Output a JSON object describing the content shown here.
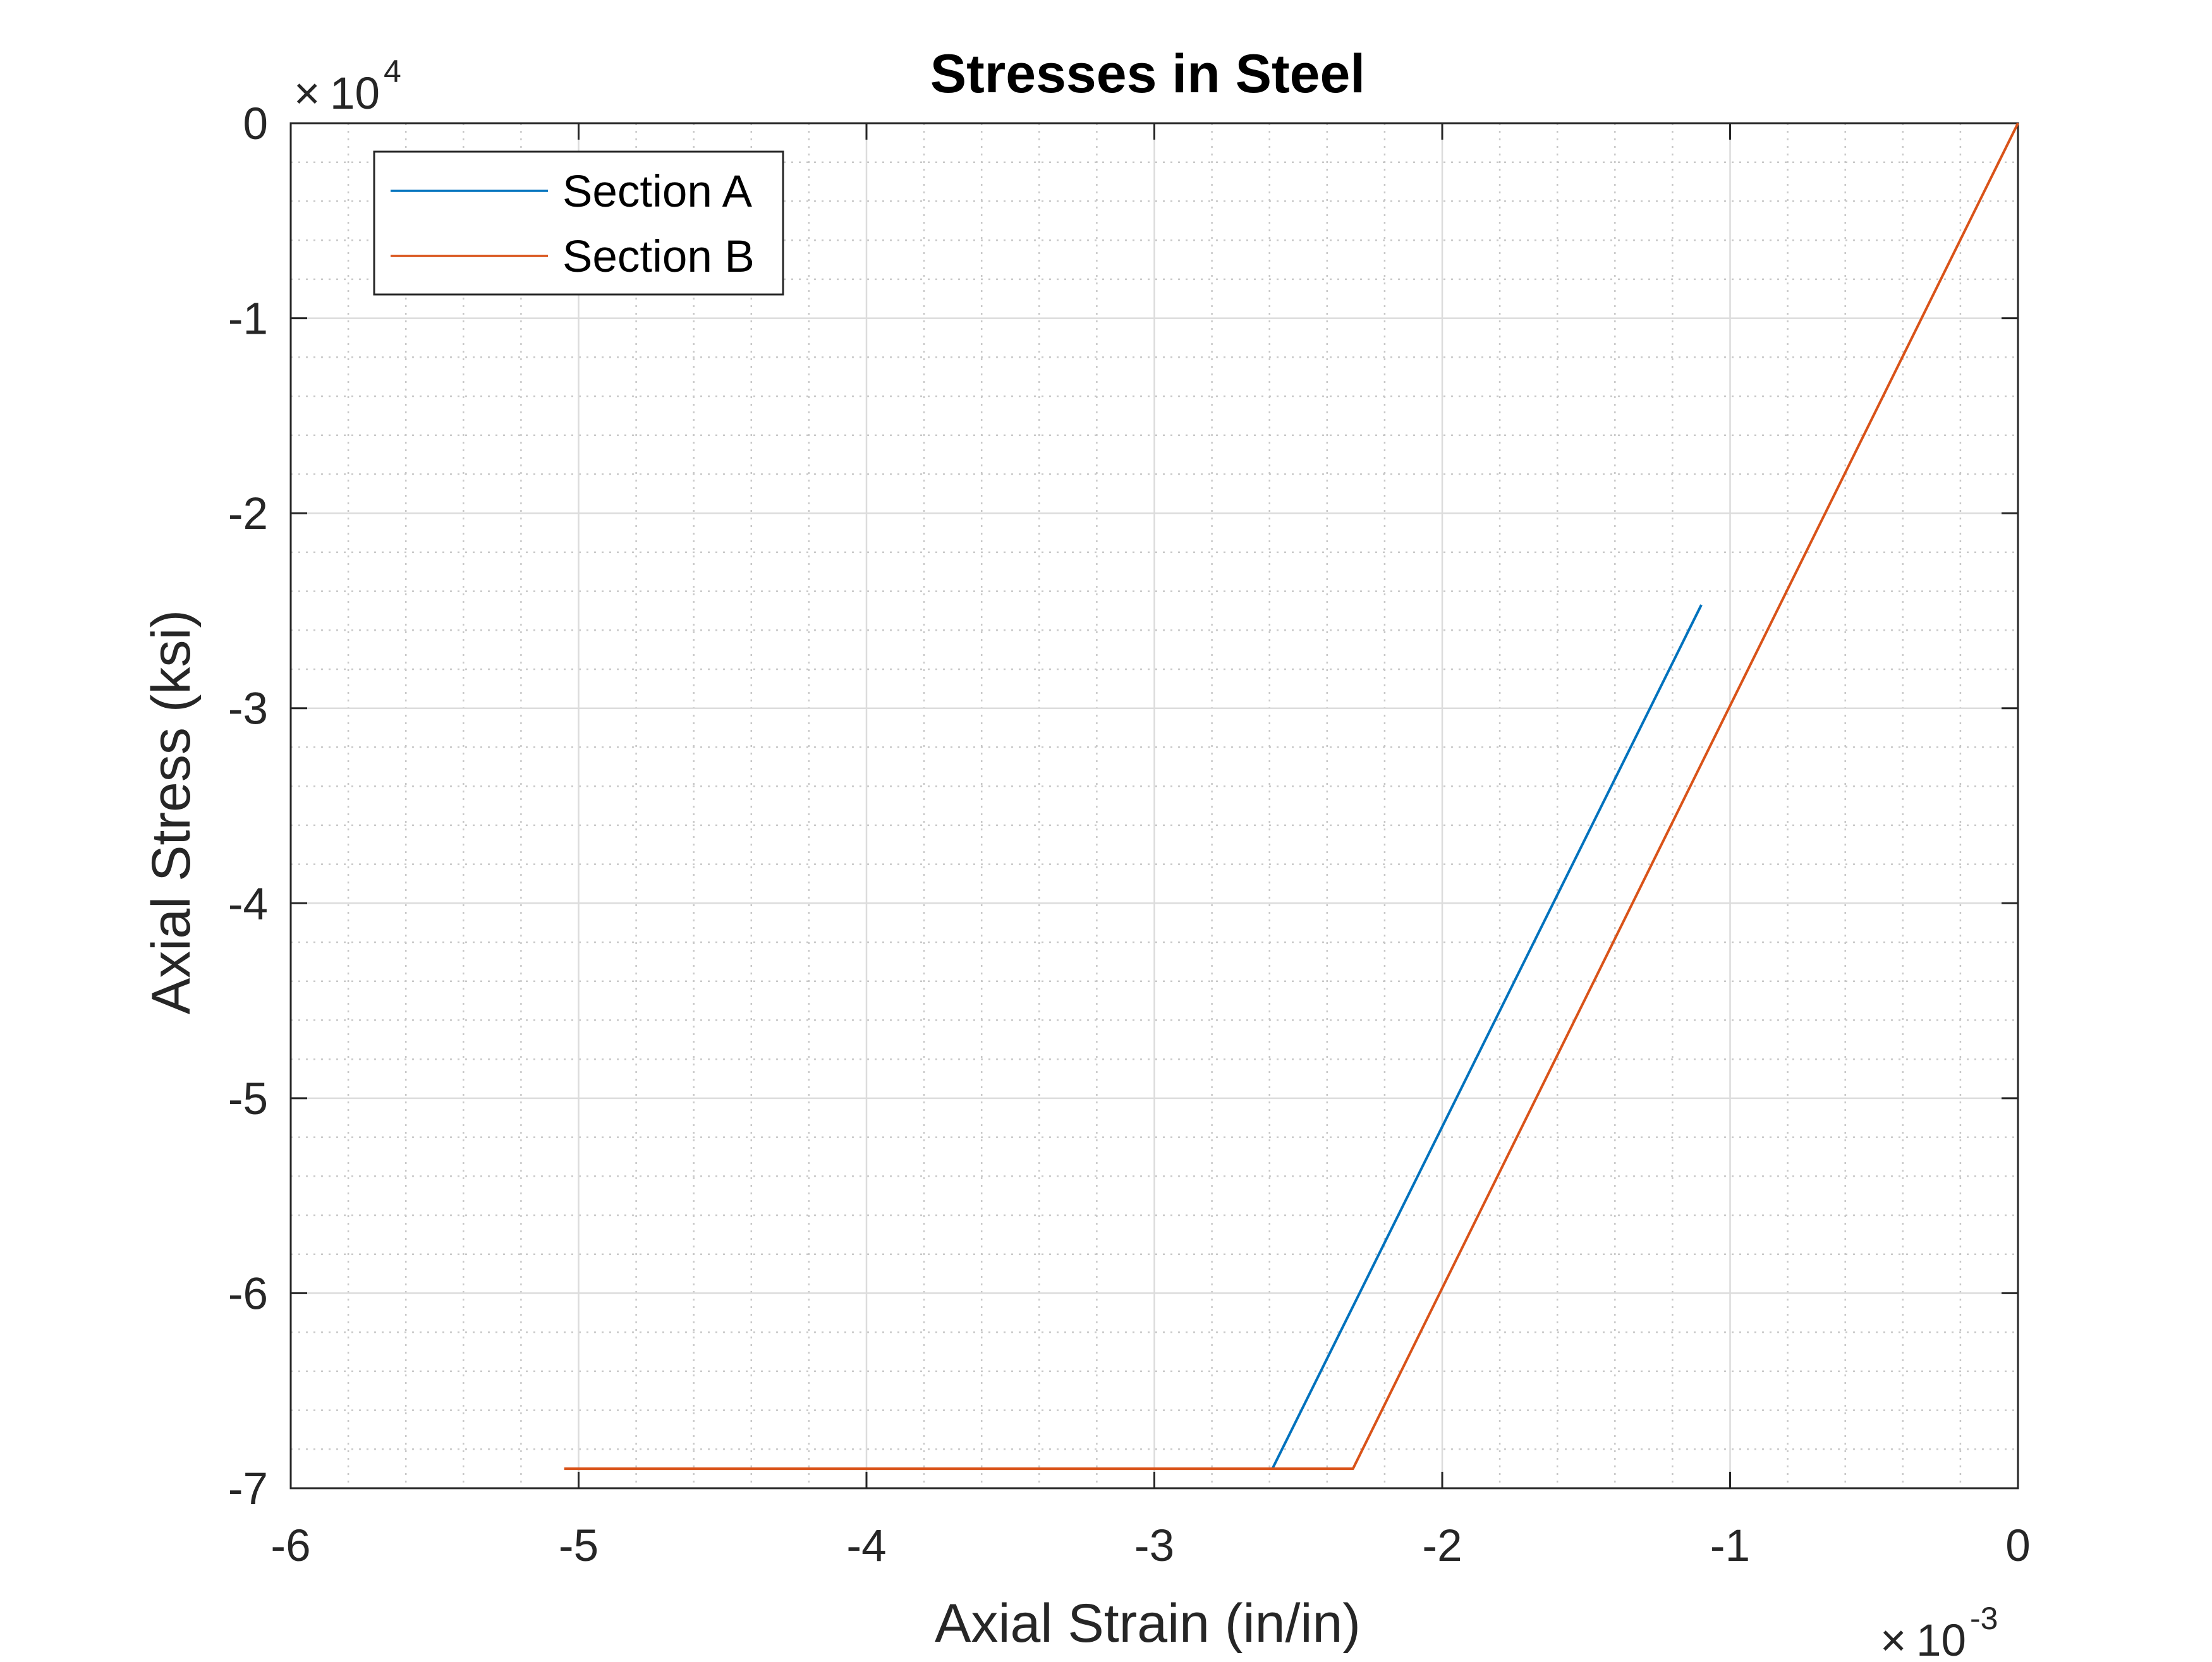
{
  "chart_data": {
    "type": "line",
    "title": "Stresses in Steel",
    "xlabel": "Axial Strain (in/in)",
    "ylabel": "Axial Stress (ksi)",
    "x_multiplier": {
      "base": "10",
      "exponent": "-3"
    },
    "y_multiplier": {
      "base": "10",
      "exponent": "4"
    },
    "xlim": [
      -6,
      0
    ],
    "ylim": [
      -7,
      0
    ],
    "x_ticks": [
      "-6",
      "-5",
      "-4",
      "-3",
      "-2",
      "-1",
      "0"
    ],
    "y_ticks": [
      "0",
      "-1",
      "-2",
      "-3",
      "-4",
      "-5",
      "-6",
      "-7"
    ],
    "grid": true,
    "minor_grid": true,
    "legend_position": "top-left",
    "series": [
      {
        "name": "Section A",
        "color": "#0072BD",
        "x": [
          -2.59,
          -1.1
        ],
        "y": [
          -6.9,
          -2.47
        ]
      },
      {
        "name": "Section B",
        "color": "#D95319",
        "x": [
          -5.05,
          -2.31,
          0
        ],
        "y": [
          -6.9,
          -6.9,
          0
        ]
      }
    ]
  }
}
